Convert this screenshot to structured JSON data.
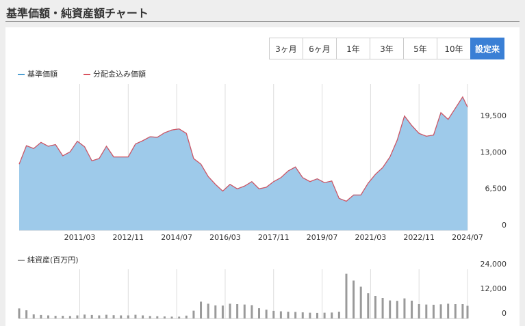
{
  "header": {
    "title": "基準価額・純資産額チャート"
  },
  "buttons": [
    "3ヶ月",
    "6ヶ月",
    "1年",
    "3年",
    "5年",
    "10年",
    "設定来"
  ],
  "active_button": 6,
  "chart_data": [
    {
      "type": "area",
      "x": [
        "2009/02",
        "2009/05",
        "2009/08",
        "2009/11",
        "2010/02",
        "2010/05",
        "2010/08",
        "2010/11",
        "2011/02",
        "2011/05",
        "2011/08",
        "2011/11",
        "2012/02",
        "2012/05",
        "2012/08",
        "2012/11",
        "2013/02",
        "2013/05",
        "2013/08",
        "2013/11",
        "2014/02",
        "2014/05",
        "2014/08",
        "2014/11",
        "2015/02",
        "2015/05",
        "2015/08",
        "2015/11",
        "2016/02",
        "2016/05",
        "2016/08",
        "2016/11",
        "2017/02",
        "2017/05",
        "2017/08",
        "2017/11",
        "2018/02",
        "2018/05",
        "2018/08",
        "2018/11",
        "2019/02",
        "2019/05",
        "2019/08",
        "2019/11",
        "2020/02",
        "2020/05",
        "2020/08",
        "2020/11",
        "2021/02",
        "2021/05",
        "2021/08",
        "2021/11",
        "2022/02",
        "2022/05",
        "2022/08",
        "2022/11",
        "2023/02",
        "2023/05",
        "2023/08",
        "2023/11",
        "2024/02",
        "2024/05",
        "2024/07"
      ],
      "series": [
        {
          "name": "基準価額",
          "color": "#4f9fd1",
          "fill": "#9ecaea",
          "values": [
            11800,
            15100,
            14600,
            15700,
            15000,
            15300,
            13300,
            14000,
            15900,
            14900,
            12400,
            12800,
            15000,
            13100,
            13100,
            13100,
            15400,
            16000,
            16700,
            16600,
            17400,
            17900,
            18100,
            17300,
            12800,
            11800,
            9600,
            8200,
            7000,
            8200,
            7400,
            7900,
            8700,
            7400,
            7700,
            8700,
            9400,
            10600,
            11300,
            9400,
            8700,
            9200,
            8500,
            8800,
            5700,
            5200,
            6300,
            6300,
            8400,
            10000,
            11200,
            13100,
            16100,
            20400,
            18700,
            17300,
            16800,
            17000,
            21000,
            19800,
            21800,
            23800,
            22000
          ]
        },
        {
          "name": "分配金込み価額",
          "color": "#d9535f",
          "values": [
            11800,
            15100,
            14600,
            15700,
            15000,
            15300,
            13300,
            14000,
            15900,
            14900,
            12400,
            12800,
            15000,
            13100,
            13100,
            13100,
            15400,
            16000,
            16700,
            16600,
            17400,
            17900,
            18100,
            17300,
            12800,
            11800,
            9600,
            8200,
            7000,
            8200,
            7400,
            7900,
            8700,
            7400,
            7700,
            8700,
            9400,
            10600,
            11300,
            9400,
            8700,
            9200,
            8500,
            8800,
            5700,
            5200,
            6300,
            6300,
            8400,
            10000,
            11200,
            13100,
            16100,
            20400,
            18700,
            17300,
            16800,
            17000,
            21000,
            19800,
            21800,
            23800,
            22000
          ]
        }
      ],
      "xlim": [
        "2009/02",
        "2024/07"
      ],
      "xticks": [
        "2011/03",
        "2012/11",
        "2014/07",
        "2016/03",
        "2017/11",
        "2019/07",
        "2021/03",
        "2022/11",
        "2024/07"
      ],
      "ylim": [
        0,
        26100
      ],
      "yticks": [
        0,
        {
          "value": 6500,
          "label": "6,500"
        },
        {
          "value": 13000,
          "label": "13,000"
        },
        {
          "value": 19500,
          "label": "19,500"
        }
      ],
      "grid": "x"
    },
    {
      "type": "bar",
      "x": [
        "2009/02",
        "2009/05",
        "2009/08",
        "2009/11",
        "2010/02",
        "2010/05",
        "2010/08",
        "2010/11",
        "2011/02",
        "2011/05",
        "2011/08",
        "2011/11",
        "2012/02",
        "2012/05",
        "2012/08",
        "2012/11",
        "2013/02",
        "2013/05",
        "2013/08",
        "2013/11",
        "2014/02",
        "2014/05",
        "2014/08",
        "2014/11",
        "2015/02",
        "2015/05",
        "2015/08",
        "2015/11",
        "2016/02",
        "2016/05",
        "2016/08",
        "2016/11",
        "2017/02",
        "2017/05",
        "2017/08",
        "2017/11",
        "2018/02",
        "2018/05",
        "2018/08",
        "2018/11",
        "2019/02",
        "2019/05",
        "2019/08",
        "2019/11",
        "2020/02",
        "2020/05",
        "2020/08",
        "2020/11",
        "2021/02",
        "2021/05",
        "2021/08",
        "2021/11",
        "2022/02",
        "2022/05",
        "2022/08",
        "2022/11",
        "2023/02",
        "2023/05",
        "2023/08",
        "2023/11",
        "2024/02",
        "2024/05",
        "2024/07"
      ],
      "series": [
        {
          "name": "純資産(百万円)",
          "color": "#9a9a9a",
          "values": [
            4900,
            4000,
            2000,
            1700,
            1500,
            1300,
            1300,
            1200,
            1500,
            1900,
            1700,
            1500,
            1800,
            1600,
            1500,
            1500,
            1800,
            1500,
            1200,
            1100,
            1000,
            900,
            900,
            1400,
            3800,
            8200,
            7200,
            6400,
            6300,
            7200,
            7000,
            6800,
            6500,
            5000,
            4300,
            3700,
            3500,
            3300,
            3200,
            3000,
            2800,
            2700,
            2800,
            2900,
            3300,
            21800,
            18500,
            15500,
            12300,
            11000,
            10000,
            8800,
            8600,
            9800,
            8700,
            7000,
            6800,
            6700,
            6900,
            7200,
            7000,
            7000,
            6200
          ]
        }
      ],
      "xlim": [
        "2009/02",
        "2024/07"
      ],
      "ylim": [
        0,
        24000
      ],
      "yticks": [
        0,
        {
          "value": 12000,
          "label": "12,000"
        },
        {
          "value": 24000,
          "label": "24,000"
        }
      ],
      "grid": "x"
    }
  ]
}
